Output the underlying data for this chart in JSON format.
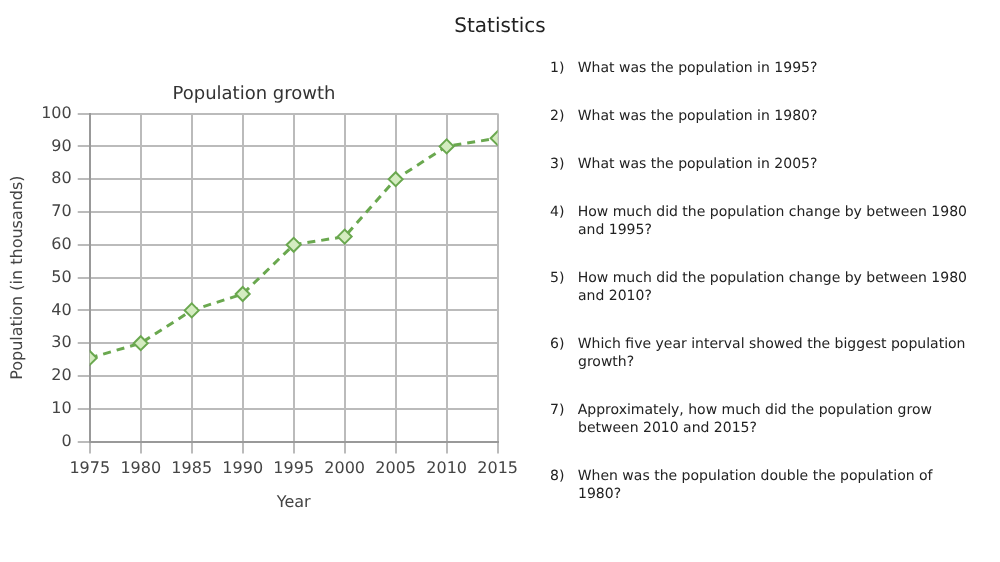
{
  "chart_data": {
    "type": "line",
    "title": "Statistics",
    "subtitle": "Population growth",
    "xlabel": "Year",
    "ylabel": "Population (in thousands)",
    "x": [
      1975,
      1980,
      1985,
      1990,
      1995,
      2000,
      2005,
      2010,
      2015
    ],
    "series": [
      {
        "color": "#6aa84f",
        "values": [
          25.5,
          30,
          40,
          45,
          60,
          62.5,
          80,
          90,
          92.5
        ]
      }
    ],
    "xlim": [
      1975,
      2015
    ],
    "xticks": [
      1975,
      1980,
      1985,
      1990,
      1995,
      2000,
      2005,
      2010,
      2015
    ],
    "ylim": [
      0,
      100
    ],
    "yticks": [
      0,
      10,
      20,
      30,
      40,
      50,
      60,
      70,
      80,
      90,
      100
    ],
    "grid": true,
    "legend": false,
    "marker": "diamond",
    "line_style": "dashed",
    "annotations": [
      "1)   What was the population in 1995?",
      "2)   What was the population in 1980?",
      "3)   What was the population in 2005?",
      "4)   How much did the population change by between 1980 and 1995?",
      "5)   How much did the population change by between 1980 and 2010?",
      "6)   Which five year interval showed the biggest population growth?",
      "7)   Approximately, how much did the population grow between 2010 and 2015?",
      "8)   When was the population double the population of 1980?"
    ]
  }
}
